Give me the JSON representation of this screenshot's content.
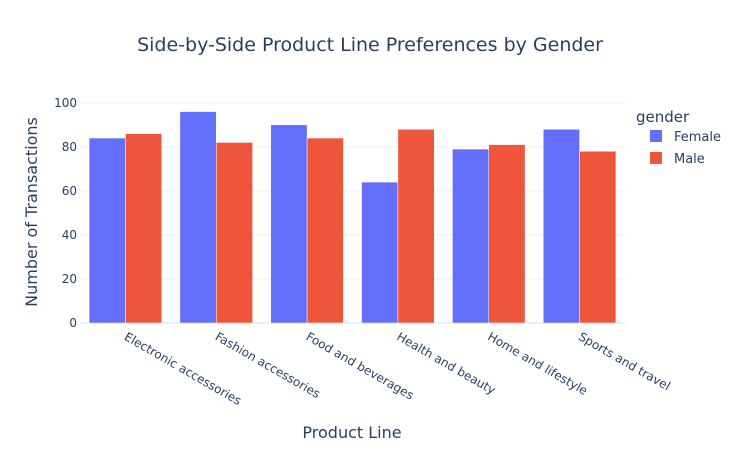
{
  "chart_data": {
    "type": "bar",
    "title": "Side-by-Side Product Line Preferences by Gender",
    "xlabel": "Product Line",
    "ylabel": "Number of Transactions",
    "categories": [
      "Electronic accessories",
      "Fashion accessories",
      "Food and beverages",
      "Health and beauty",
      "Home and lifestyle",
      "Sports and travel"
    ],
    "series": [
      {
        "name": "Female",
        "values": [
          84,
          96,
          90,
          64,
          79,
          88
        ],
        "color": "#636efa"
      },
      {
        "name": "Male",
        "values": [
          86,
          82,
          84,
          88,
          81,
          78
        ],
        "color": "#ef553b"
      }
    ],
    "yticks": [
      0,
      20,
      40,
      60,
      80,
      100
    ],
    "ylim": [
      0,
      104
    ],
    "grid": true,
    "legend_title": "gender",
    "legend_position": "top-right",
    "colors": {
      "text": "#2a3f5f",
      "grid": "#ebf0f8",
      "background": "#ffffff"
    }
  }
}
